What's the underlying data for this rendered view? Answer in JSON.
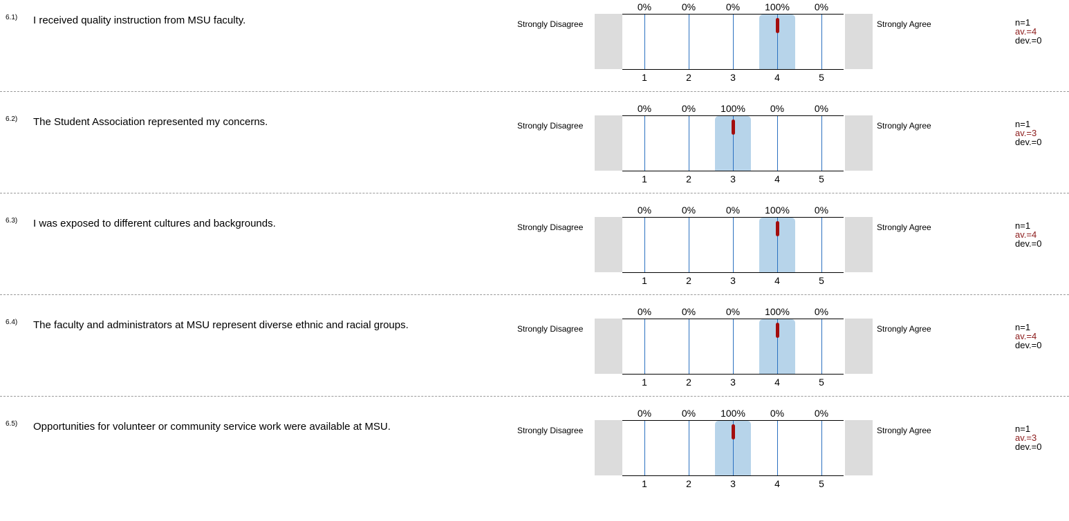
{
  "scale": {
    "left_label": "Strongly Disagree",
    "right_label": "Strongly Agree",
    "ticks": [
      "1",
      "2",
      "3",
      "4",
      "5"
    ]
  },
  "items": [
    {
      "num": "6.1)",
      "question": "I received quality instruction from MSU faculty.",
      "percentages": [
        "0%",
        "0%",
        "0%",
        "100%",
        "0%"
      ],
      "n": "n=1",
      "av": "av.=4",
      "dev": "dev.=0",
      "mean": 4
    },
    {
      "num": "6.2)",
      "question": "The Student Association represented my concerns.",
      "percentages": [
        "0%",
        "0%",
        "100%",
        "0%",
        "0%"
      ],
      "n": "n=1",
      "av": "av.=3",
      "dev": "dev.=0",
      "mean": 3
    },
    {
      "num": "6.3)",
      "question": "I was exposed to different cultures and backgrounds.",
      "percentages": [
        "0%",
        "0%",
        "0%",
        "100%",
        "0%"
      ],
      "n": "n=1",
      "av": "av.=4",
      "dev": "dev.=0",
      "mean": 4
    },
    {
      "num": "6.4)",
      "question": "The faculty and administrators at MSU represent diverse ethnic and racial groups.",
      "percentages": [
        "0%",
        "0%",
        "0%",
        "100%",
        "0%"
      ],
      "n": "n=1",
      "av": "av.=4",
      "dev": "dev.=0",
      "mean": 4
    },
    {
      "num": "6.5)",
      "question": "Opportunities for volunteer or community service work were available at MSU.",
      "percentages": [
        "0%",
        "0%",
        "100%",
        "0%",
        "0%"
      ],
      "n": "n=1",
      "av": "av.=3",
      "dev": "dev.=0",
      "mean": 3
    }
  ],
  "chart_data": {
    "type": "bar",
    "categories": [
      "1",
      "2",
      "3",
      "4",
      "5"
    ],
    "ylim": [
      0,
      100
    ],
    "series": [
      {
        "name": "I received quality instruction from MSU faculty.",
        "values": [
          0,
          0,
          0,
          100,
          0
        ]
      },
      {
        "name": "The Student Association represented my concerns.",
        "values": [
          0,
          0,
          100,
          0,
          0
        ]
      },
      {
        "name": "I was exposed to different cultures and backgrounds.",
        "values": [
          0,
          0,
          0,
          100,
          0
        ]
      },
      {
        "name": "The faculty and administrators at MSU represent diverse ethnic and racial groups.",
        "values": [
          0,
          0,
          0,
          100,
          0
        ]
      },
      {
        "name": "Opportunities for volunteer or community service work were available at MSU.",
        "values": [
          0,
          0,
          100,
          0,
          0
        ]
      }
    ],
    "colors": {
      "highlight": "#b7d4ea",
      "gridline": "#2a70c0",
      "mean_marker": "#a30d0d",
      "side_box": "#dcdcdc",
      "average_text": "#8b1a1a"
    }
  }
}
